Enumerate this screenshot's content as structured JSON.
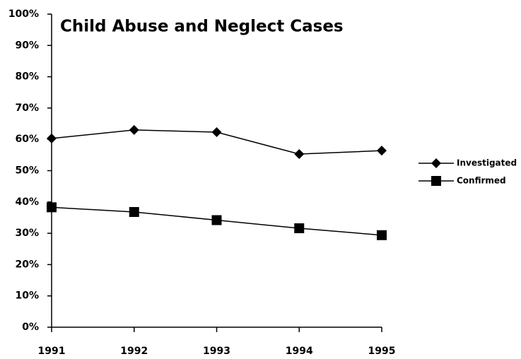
{
  "chart_data": {
    "type": "line",
    "title": "Child Abuse and Neglect Cases",
    "x": [
      1991,
      1992,
      1993,
      1994,
      1995
    ],
    "xlim": [
      1991,
      1995
    ],
    "xticks": [
      1991,
      1992,
      1993,
      1994,
      1995
    ],
    "ylim": [
      0,
      100
    ],
    "yticks": [
      {
        "value": 0,
        "label": "0%"
      },
      {
        "value": 10,
        "label": "10%"
      },
      {
        "value": 20,
        "label": "20%"
      },
      {
        "value": 30,
        "label": "30%"
      },
      {
        "value": 40,
        "label": "40%"
      },
      {
        "value": 50,
        "label": "50%"
      },
      {
        "value": 60,
        "label": "60%"
      },
      {
        "value": 70,
        "label": "70%"
      },
      {
        "value": 80,
        "label": "80%"
      },
      {
        "value": 90,
        "label": "90%"
      },
      {
        "value": 100,
        "label": "100%"
      }
    ],
    "grid": false,
    "legend": "right",
    "series": [
      {
        "name": "Investigated",
        "color": "#000000",
        "marker": "diamond",
        "values": [
          60.3,
          63,
          62.3,
          55.3,
          56.4
        ]
      },
      {
        "name": "Confirmed",
        "color": "#000000",
        "marker": "square",
        "values": [
          38.3,
          36.8,
          34.2,
          31.6,
          29.4
        ]
      }
    ]
  }
}
